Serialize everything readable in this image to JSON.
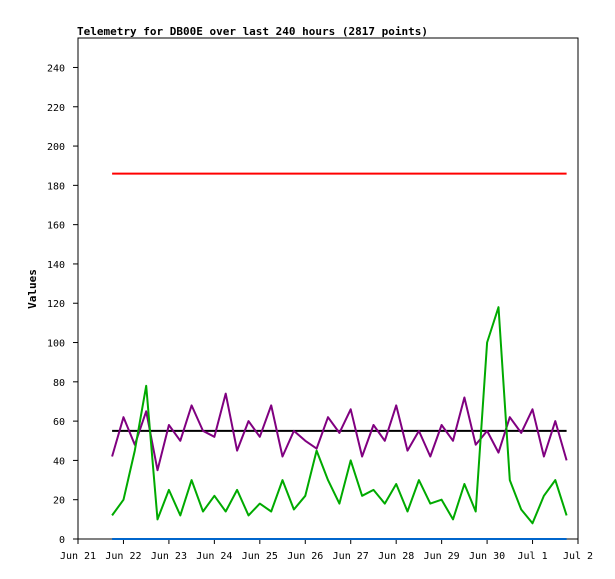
{
  "chart_data": {
    "type": "line",
    "title": "Telemetry for DB00E over last 240 hours (2817 points)",
    "xlabel": "",
    "ylabel": "Values",
    "ylim": [
      0,
      255
    ],
    "xlim": [
      "2021-06-21",
      "2021-07-02"
    ],
    "y_ticks": [
      0,
      20,
      40,
      60,
      80,
      100,
      120,
      140,
      160,
      180,
      200,
      220,
      240
    ],
    "x_ticks": [
      {
        "date": "2021-06-21",
        "label": "Jun 21"
      },
      {
        "date": "2021-06-22",
        "label": "Jun 22"
      },
      {
        "date": "2021-06-23",
        "label": "Jun 23"
      },
      {
        "date": "2021-06-24",
        "label": "Jun 24"
      },
      {
        "date": "2021-06-25",
        "label": "Jun 25"
      },
      {
        "date": "2021-06-26",
        "label": "Jun 26"
      },
      {
        "date": "2021-06-27",
        "label": "Jun 27"
      },
      {
        "date": "2021-06-28",
        "label": "Jun 28"
      },
      {
        "date": "2021-06-29",
        "label": "Jun 29"
      },
      {
        "date": "2021-06-30",
        "label": "Jun 30"
      },
      {
        "date": "2021-07-01",
        "label": "Jul 1"
      },
      {
        "date": "2021-07-02",
        "label": "Jul 2"
      }
    ],
    "grid": false,
    "legend": "none",
    "series": [
      {
        "color": "#ff0000",
        "x": [
          "2021-06-21 18:00",
          "2021-06-22 06:00",
          "2021-06-22 18:00",
          "2021-06-23 06:00",
          "2021-06-23 18:00",
          "2021-06-24 06:00",
          "2021-06-24 18:00",
          "2021-06-25 06:00",
          "2021-06-25 18:00",
          "2021-06-26 06:00",
          "2021-06-26 18:00",
          "2021-06-27 06:00",
          "2021-06-27 18:00",
          "2021-06-28 06:00",
          "2021-06-28 18:00",
          "2021-06-29 06:00",
          "2021-06-29 18:00",
          "2021-06-30 06:00",
          "2021-06-30 18:00",
          "2021-07-01 06:00",
          "2021-07-01 18:00"
        ],
        "y": [
          186,
          186,
          186,
          186,
          186,
          186,
          186,
          186,
          186,
          186,
          186,
          186,
          186,
          186,
          186,
          186,
          186,
          186,
          186,
          186,
          186
        ]
      },
      {
        "color": "#000000",
        "x": [
          "2021-06-21 18:00",
          "2021-07-01 18:00"
        ],
        "y": [
          55,
          55
        ]
      },
      {
        "color": "#800080",
        "x": [
          "2021-06-21 18:00",
          "2021-06-22 00:00",
          "2021-06-22 06:00",
          "2021-06-22 12:00",
          "2021-06-22 18:00",
          "2021-06-23 00:00",
          "2021-06-23 06:00",
          "2021-06-23 12:00",
          "2021-06-23 18:00",
          "2021-06-24 00:00",
          "2021-06-24 06:00",
          "2021-06-24 12:00",
          "2021-06-24 18:00",
          "2021-06-25 00:00",
          "2021-06-25 06:00",
          "2021-06-25 12:00",
          "2021-06-25 18:00",
          "2021-06-26 00:00",
          "2021-06-26 06:00",
          "2021-06-26 12:00",
          "2021-06-26 18:00",
          "2021-06-27 00:00",
          "2021-06-27 06:00",
          "2021-06-27 12:00",
          "2021-06-27 18:00",
          "2021-06-28 00:00",
          "2021-06-28 06:00",
          "2021-06-28 12:00",
          "2021-06-28 18:00",
          "2021-06-29 00:00",
          "2021-06-29 06:00",
          "2021-06-29 12:00",
          "2021-06-29 18:00",
          "2021-06-30 00:00",
          "2021-06-30 06:00",
          "2021-06-30 12:00",
          "2021-06-30 18:00",
          "2021-07-01 00:00",
          "2021-07-01 06:00",
          "2021-07-01 12:00",
          "2021-07-01 18:00"
        ],
        "y": [
          42,
          62,
          48,
          65,
          35,
          58,
          50,
          68,
          55,
          52,
          74,
          45,
          60,
          52,
          68,
          42,
          55,
          50,
          46,
          62,
          54,
          66,
          42,
          58,
          50,
          68,
          45,
          55,
          42,
          58,
          50,
          72,
          48,
          55,
          44,
          62,
          54,
          66,
          42,
          60,
          40
        ]
      },
      {
        "color": "#00aa00",
        "x": [
          "2021-06-21 18:00",
          "2021-06-22 00:00",
          "2021-06-22 06:00",
          "2021-06-22 12:00",
          "2021-06-22 18:00",
          "2021-06-23 00:00",
          "2021-06-23 06:00",
          "2021-06-23 12:00",
          "2021-06-23 18:00",
          "2021-06-24 00:00",
          "2021-06-24 06:00",
          "2021-06-24 12:00",
          "2021-06-24 18:00",
          "2021-06-25 00:00",
          "2021-06-25 06:00",
          "2021-06-25 12:00",
          "2021-06-25 18:00",
          "2021-06-26 00:00",
          "2021-06-26 06:00",
          "2021-06-26 12:00",
          "2021-06-26 18:00",
          "2021-06-27 00:00",
          "2021-06-27 06:00",
          "2021-06-27 12:00",
          "2021-06-27 18:00",
          "2021-06-28 00:00",
          "2021-06-28 06:00",
          "2021-06-28 12:00",
          "2021-06-28 18:00",
          "2021-06-29 00:00",
          "2021-06-29 06:00",
          "2021-06-29 12:00",
          "2021-06-29 18:00",
          "2021-06-30 00:00",
          "2021-06-30 06:00",
          "2021-06-30 12:00",
          "2021-06-30 18:00",
          "2021-07-01 00:00",
          "2021-07-01 06:00",
          "2021-07-01 12:00",
          "2021-07-01 18:00"
        ],
        "y": [
          12,
          20,
          45,
          78,
          10,
          25,
          12,
          30,
          14,
          22,
          14,
          25,
          12,
          18,
          14,
          30,
          15,
          22,
          45,
          30,
          18,
          40,
          22,
          25,
          18,
          28,
          14,
          30,
          18,
          20,
          10,
          28,
          14,
          100,
          118,
          30,
          15,
          8,
          22,
          30,
          12
        ]
      },
      {
        "color": "#0066cc",
        "x": [
          "2021-06-21 18:00",
          "2021-07-01 18:00"
        ],
        "y": [
          0,
          0
        ]
      }
    ]
  }
}
